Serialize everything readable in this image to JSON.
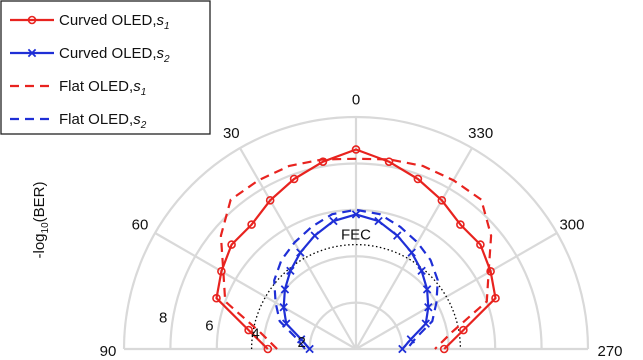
{
  "chart_data": {
    "type": "polar",
    "ylabel_main": "-log",
    "ylabel_sub": "10",
    "ylabel_tail": "(BER)",
    "angle_ticks": [
      {
        "label": "90",
        "angle": 90
      },
      {
        "label": "60",
        "angle": 60
      },
      {
        "label": "30",
        "angle": 30
      },
      {
        "label": "0",
        "angle": 0
      },
      {
        "label": "330",
        "angle": -30
      },
      {
        "label": "300",
        "angle": -60
      },
      {
        "label": "270",
        "angle": -90
      }
    ],
    "radial_ticks": [
      {
        "label": "2",
        "value": 2
      },
      {
        "label": "4",
        "value": 4
      },
      {
        "label": "6",
        "value": 6
      },
      {
        "label": "8",
        "value": 8
      }
    ],
    "rlim": [
      0,
      10
    ],
    "fec": {
      "label": "FEC",
      "value": 4.5
    },
    "colors": {
      "s1": "#e8231f",
      "s2": "#1f2fd6",
      "grid": "#d9d9d9",
      "fec": "#000000"
    },
    "series": [
      {
        "label_main": "Curved OLED,",
        "label_var": "s",
        "label_sub": "1",
        "style": "solid",
        "marker": "circle",
        "color": "#e8231f",
        "angles": [
          90,
          80,
          70,
          60,
          50,
          40,
          30,
          20,
          10,
          0,
          -10,
          -20,
          -30,
          -40,
          -50,
          -60,
          -70,
          -80,
          -90
        ],
        "r": [
          3.8,
          4.7,
          6.4,
          6.7,
          7.0,
          7.0,
          7.4,
          7.8,
          8.2,
          8.6,
          8.2,
          7.8,
          7.4,
          7.0,
          7.0,
          6.7,
          6.4,
          4.7,
          3.8
        ]
      },
      {
        "label_main": "Curved OLED,",
        "label_var": "s",
        "label_sub": "2",
        "style": "solid",
        "marker": "x",
        "color": "#1f2fd6",
        "angles": [
          90,
          80,
          70,
          60,
          50,
          40,
          30,
          20,
          10,
          0,
          -10,
          -20,
          -30,
          -40,
          -50,
          -60,
          -70,
          -80,
          -90
        ],
        "r": [
          2.0,
          2.4,
          3.2,
          3.6,
          4.0,
          4.4,
          4.8,
          5.2,
          5.6,
          5.8,
          5.6,
          5.2,
          4.8,
          4.4,
          4.0,
          3.6,
          3.2,
          2.4,
          2.0
        ]
      },
      {
        "label_main": "Flat OLED,",
        "label_var": "s",
        "label_sub": "1",
        "style": "dashed",
        "marker": "none",
        "color": "#e8231f",
        "angles": [
          90,
          80,
          70,
          60,
          50,
          40,
          30,
          20,
          10,
          0,
          -10,
          -20,
          -30,
          -40,
          -50,
          -60,
          -70,
          -80,
          -90
        ],
        "r": [
          3.4,
          4.2,
          6.0,
          6.6,
          7.6,
          8.4,
          8.4,
          8.4,
          8.3,
          8.2,
          8.3,
          8.4,
          8.4,
          8.4,
          7.6,
          6.6,
          6.0,
          4.2,
          3.4
        ]
      },
      {
        "label_main": "Flat OLED,",
        "label_var": "s",
        "label_sub": "2",
        "style": "dashed",
        "marker": "none",
        "color": "#1f2fd6",
        "angles": [
          90,
          80,
          70,
          60,
          50,
          40,
          30,
          20,
          10,
          0,
          -10,
          -20,
          -30,
          -40,
          -50,
          -60,
          -70,
          -80,
          -90
        ],
        "r": [
          2.2,
          2.6,
          3.5,
          4.0,
          4.6,
          5.0,
          5.3,
          5.6,
          5.9,
          6.0,
          5.9,
          5.6,
          5.3,
          5.0,
          4.6,
          4.0,
          3.5,
          2.6,
          2.2
        ]
      }
    ],
    "legend_position": "top-left",
    "grid": true
  }
}
